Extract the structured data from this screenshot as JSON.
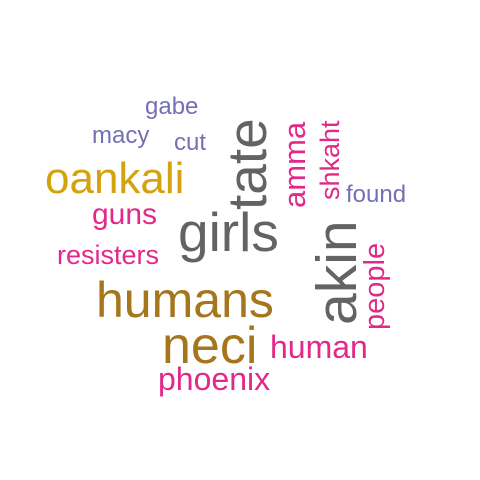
{
  "colors": {
    "gray": "#636363",
    "gold": "#d4a20f",
    "olive": "#a6761d",
    "magenta": "#e2298a",
    "purple": "#7570b3"
  },
  "words": {
    "gabe": "gabe",
    "macy": "macy",
    "cut": "cut",
    "oankali": "oankali",
    "guns": "guns",
    "resisters": "resisters",
    "girls": "girls",
    "tate": "tate",
    "amma": "amma",
    "shkaht": "shkaht",
    "found": "found",
    "akin": "akin",
    "people": "people",
    "humans": "humans",
    "neci": "neci",
    "human": "human",
    "phoenix": "phoenix"
  },
  "word_colors": {
    "gabe": "purple",
    "macy": "purple",
    "cut": "purple",
    "oankali": "gold",
    "guns": "magenta",
    "resisters": "magenta",
    "girls": "gray",
    "tate": "gray",
    "amma": "magenta",
    "shkaht": "magenta",
    "found": "purple",
    "akin": "gray",
    "people": "magenta",
    "humans": "olive",
    "neci": "olive",
    "human": "magenta",
    "phoenix": "magenta"
  }
}
